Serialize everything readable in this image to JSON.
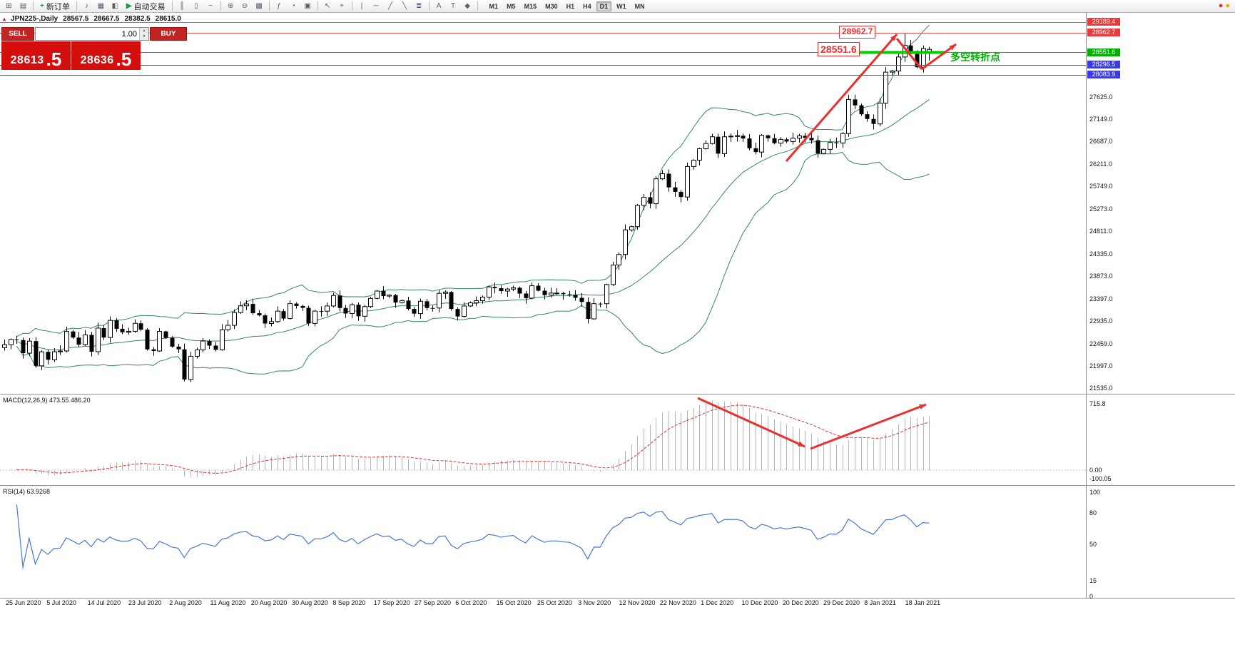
{
  "toolbar": {
    "items": [
      {
        "type": "icon",
        "name": "new-chart-icon",
        "glyph": "⊞"
      },
      {
        "type": "icon",
        "name": "profiles-icon",
        "glyph": "▤"
      },
      {
        "type": "sep"
      },
      {
        "type": "button",
        "name": "new-order-button",
        "label": "新订单",
        "glyph": "+",
        "glyph_color": "#1d9e45"
      },
      {
        "type": "sep"
      },
      {
        "type": "icon",
        "name": "sound-icon",
        "glyph": "♪"
      },
      {
        "type": "icon",
        "name": "market-watch-icon",
        "glyph": "▦"
      },
      {
        "type": "icon",
        "name": "navigator-icon",
        "glyph": "◧"
      },
      {
        "type": "button",
        "name": "auto-trading-button",
        "label": "自动交易",
        "glyph": "▶",
        "glyph_color": "#1d9e45"
      },
      {
        "type": "sep"
      },
      {
        "type": "icon",
        "name": "bar-chart-type-icon",
        "glyph": "║"
      },
      {
        "type": "icon",
        "name": "candle-chart-type-icon",
        "glyph": "▯"
      },
      {
        "type": "icon",
        "name": "line-chart-type-icon",
        "glyph": "~"
      },
      {
        "type": "sep"
      },
      {
        "type": "icon",
        "name": "zoom-in-icon",
        "glyph": "⊕"
      },
      {
        "type": "icon",
        "name": "zoom-out-icon",
        "glyph": "⊖"
      },
      {
        "type": "icon",
        "name": "tile-windows-icon",
        "glyph": "▩"
      },
      {
        "type": "sep"
      },
      {
        "type": "icon",
        "name": "indicators-icon",
        "glyph": "ƒ"
      },
      {
        "type": "icon",
        "name": "periods-icon",
        "glyph": "◔"
      },
      {
        "type": "icon",
        "name": "templates-icon",
        "glyph": "▣"
      },
      {
        "type": "sep"
      },
      {
        "type": "icon",
        "name": "cursor-icon",
        "glyph": "↖"
      },
      {
        "type": "icon",
        "name": "crosshair-icon",
        "glyph": "+"
      },
      {
        "type": "sep"
      },
      {
        "type": "icon",
        "name": "vertical-line-icon",
        "glyph": "|"
      },
      {
        "type": "icon",
        "name": "horizontal-line-icon",
        "glyph": "─"
      },
      {
        "type": "icon",
        "name": "trendline-icon",
        "glyph": "╱"
      },
      {
        "type": "icon",
        "name": "channel-icon",
        "glyph": "╲"
      },
      {
        "type": "icon",
        "name": "fibonacci-icon",
        "glyph": "≣"
      },
      {
        "type": "sep"
      },
      {
        "type": "icon",
        "name": "text-icon",
        "glyph": "A"
      },
      {
        "type": "icon",
        "name": "label-icon",
        "glyph": "T"
      },
      {
        "type": "icon",
        "name": "shapes-icon",
        "glyph": "◆"
      },
      {
        "type": "sep"
      }
    ],
    "timeframes": [
      "M1",
      "M5",
      "M15",
      "M30",
      "H1",
      "H4",
      "D1",
      "W1",
      "MN"
    ],
    "active_timeframe": "D1",
    "status_icons": [
      {
        "name": "alert-status-icon",
        "glyph": "●",
        "color": "#e03131"
      },
      {
        "name": "news-status-icon",
        "glyph": "●",
        "color": "#f59f00"
      }
    ]
  },
  "trade_panel": {
    "sell_label": "SELL",
    "buy_label": "BUY",
    "volume": "1.00",
    "spin_up_glyph": "▲",
    "spin_down_glyph": "▼",
    "sell_price": {
      "main": "28613",
      "pips": ".5"
    },
    "buy_price": {
      "main": "28636",
      "pips": ".5"
    }
  },
  "chart_header": {
    "marker_glyph": "▴",
    "symbol": "JPN225-,Daily",
    "open": "28567.5",
    "high": "28667.5",
    "low": "28382.5",
    "close": "28615.0"
  },
  "annotations": {
    "resistance_label": "28962.7",
    "support_label": "28551.6",
    "turning_point_label": "多空转折点",
    "arrow_color": "#e8312f",
    "support_segment_color": "#00cc00"
  },
  "levels": [
    {
      "value": 29189.4,
      "line_color": "#f05050",
      "tag_bg": "#e83a3a"
    },
    {
      "value": 28962.7,
      "line_color": "#f05050",
      "tag_bg": "#e83a3a"
    },
    {
      "value": 28551.6,
      "line_color": "#00c000",
      "tag_bg": "#00b000"
    },
    {
      "value": 28296.5,
      "line_color": "#4848ff",
      "tag_bg": "#3a3af0"
    },
    {
      "value": 28083.9,
      "line_color": "#4848ff",
      "tag_bg": "#3a3af0"
    }
  ],
  "price_axis_labels": [
    27625.0,
    27149.0,
    26687.0,
    26211.0,
    25749.0,
    25273.0,
    24811.0,
    24335.0,
    23873.0,
    23397.0,
    22935.0,
    22459.0,
    21997.0,
    21535.0
  ],
  "macd_panel": {
    "label": "MACD(12,26,9) 473.55 486.20",
    "axis": [
      {
        "label": "715.8",
        "value": 715.8
      },
      {
        "label": "0.00",
        "value": 0
      },
      {
        "label": "-100.05",
        "value": -100.05
      }
    ]
  },
  "rsi_panel": {
    "label": "RSI(14) 63.9268",
    "axis": [
      {
        "label": "100",
        "value": 100
      },
      {
        "label": "80",
        "value": 80
      },
      {
        "label": "50",
        "value": 50
      },
      {
        "label": "15",
        "value": 15
      },
      {
        "label": "0",
        "value": 0
      }
    ]
  },
  "date_axis": [
    "25 Jun 2020",
    "5 Jul 2020",
    "14 Jul 2020",
    "23 Jul 2020",
    "2 Aug 2020",
    "11 Aug 2020",
    "20 Aug 2020",
    "30 Aug 2020",
    "8 Sep 2020",
    "17 Sep 2020",
    "27 Sep 2020",
    "6 Oct 2020",
    "15 Oct 2020",
    "25 Oct 2020",
    "3 Nov 2020",
    "12 Nov 2020",
    "22 Nov 2020",
    "1 Dec 2020",
    "10 Dec 2020",
    "20 Dec 2020",
    "29 Dec 2020",
    "8 Jan 2021",
    "18 Jan 2021"
  ],
  "chart_data": [
    {
      "type": "candlestick",
      "title": "JPN225-,Daily",
      "last_ohlc": {
        "open": 28567.5,
        "high": 28667.5,
        "low": 28382.5,
        "close": 28615.0
      },
      "session_high": 28962.7,
      "ylim": [
        21535.0,
        29189.4
      ],
      "h_lines": [
        29189.4,
        28962.7,
        28551.6,
        28296.5,
        28083.9
      ],
      "overlays": [
        {
          "name": "Bollinger Bands",
          "period": 20,
          "deviation": 2
        }
      ],
      "colors": {
        "bull": "#ffffff",
        "bear": "#000000",
        "bollinger": "#2f8b57"
      },
      "closes": [
        22437,
        22549,
        22534,
        22260,
        22512,
        21995,
        22288,
        22122,
        22290,
        22306,
        22714,
        22587,
        22439,
        22643,
        22291,
        22784,
        22588,
        22946,
        22770,
        22696,
        22717,
        22884,
        22752,
        22339,
        22306,
        22715,
        22581,
        22397,
        22340,
        21710,
        22195,
        22329,
        22514,
        22418,
        22330,
        22750,
        22843,
        23110,
        23250,
        23290,
        23096,
        23051,
        22880,
        22920,
        23139,
        22985,
        23296,
        23247,
        23208,
        22882,
        23140,
        23138,
        23247,
        23466,
        23205,
        23090,
        23274,
        23032,
        23235,
        23406,
        23559,
        23454,
        23475,
        23319,
        23360,
        23185,
        23087,
        23346,
        23205,
        23204,
        23512,
        23539,
        23185,
        23029,
        23247,
        23312,
        23358,
        23433,
        23647,
        23620,
        23559,
        23601,
        23627,
        23507,
        23411,
        23671,
        23567,
        23474,
        23517,
        23517,
        23494,
        23485,
        23418,
        23332,
        22977,
        23296,
        23295,
        23695,
        24105,
        24325,
        24839,
        24906,
        25350,
        25521,
        25386,
        25907,
        26014,
        25728,
        25635,
        25527,
        26165,
        26297,
        26537,
        26645,
        26787,
        26434,
        26787,
        26800,
        26809,
        26751,
        26547,
        26467,
        26817,
        26756,
        26653,
        26732,
        26687,
        26757,
        26806,
        26763,
        26714,
        26436,
        26524,
        26668,
        26657,
        26854,
        27568,
        27444,
        27258,
        27159,
        27056,
        27490,
        28139,
        28164,
        28456,
        28698,
        28519,
        28242,
        28633,
        28615
      ]
    },
    {
      "type": "bar",
      "name": "MACD",
      "params": [
        12,
        26,
        9
      ],
      "display_values": [
        473.55,
        486.2
      ],
      "derived_from": "chart_data[0].closes",
      "ylim": [
        -100.05,
        715.8
      ],
      "histogram_color": "#b5b5b5",
      "signal_color": "#e8312f"
    },
    {
      "type": "line",
      "name": "RSI",
      "params": [
        14
      ],
      "display_value": 63.9268,
      "derived_from": "chart_data[0].closes",
      "ylim": [
        0,
        100
      ],
      "line_color": "#4878d0"
    }
  ]
}
